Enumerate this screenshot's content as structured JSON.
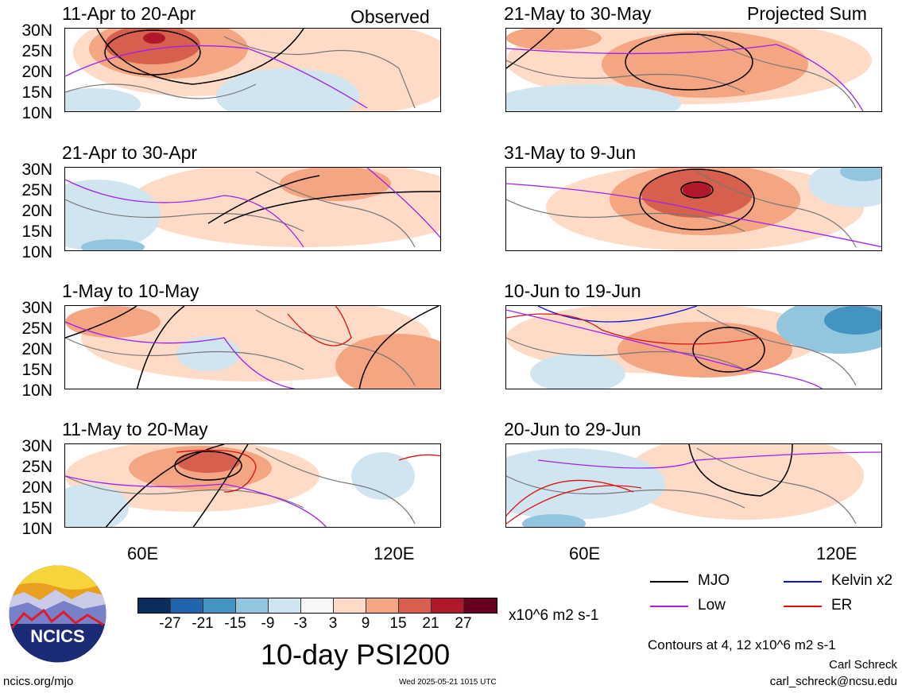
{
  "observed_label": "Observed",
  "projected_label": "Projected Sum",
  "latitude_labels": [
    "30N",
    "25N",
    "20N",
    "15N",
    "10N"
  ],
  "longitude_labels": [
    "60E",
    "120E"
  ],
  "panels_left": [
    {
      "title": "11-Apr to 20-Apr"
    },
    {
      "title": "21-Apr to 30-Apr"
    },
    {
      "title": "1-May to 10-May"
    },
    {
      "title": "11-May to 20-May"
    }
  ],
  "panels_right": [
    {
      "title": "21-May to 30-May"
    },
    {
      "title": "31-May to 9-Jun"
    },
    {
      "title": "10-Jun to 19-Jun"
    },
    {
      "title": "20-Jun to 29-Jun"
    }
  ],
  "colorbar": {
    "colors": [
      "#0b2d5c",
      "#2166ac",
      "#4393c3",
      "#92c5de",
      "#d1e5f0",
      "#f7f7f7",
      "#fddbc7",
      "#f4a582",
      "#d6604d",
      "#b2182b",
      "#67001f"
    ],
    "ticks": [
      "-27",
      "-21",
      "-15",
      "-9",
      "-3",
      "3",
      "9",
      "15",
      "21",
      "27"
    ],
    "units": "x10^6 m2 s-1"
  },
  "title": "10-day PSI200",
  "legend": [
    {
      "label": "MJO",
      "color": "#000000"
    },
    {
      "label": "Kelvin x2",
      "color": "#1010e0"
    },
    {
      "label": "Low",
      "color": "#a020f0"
    },
    {
      "label": "ER",
      "color": "#e01010"
    }
  ],
  "contour_note": "Contours at 4, 12 x10^6 m2 s-1",
  "author": "Carl Schreck",
  "email": "carl_schreck@ncsu.edu",
  "website": "ncics.org/mjo",
  "timestamp": "Wed 2025-05-21 1015 UTC",
  "logo_text": "NCICS"
}
